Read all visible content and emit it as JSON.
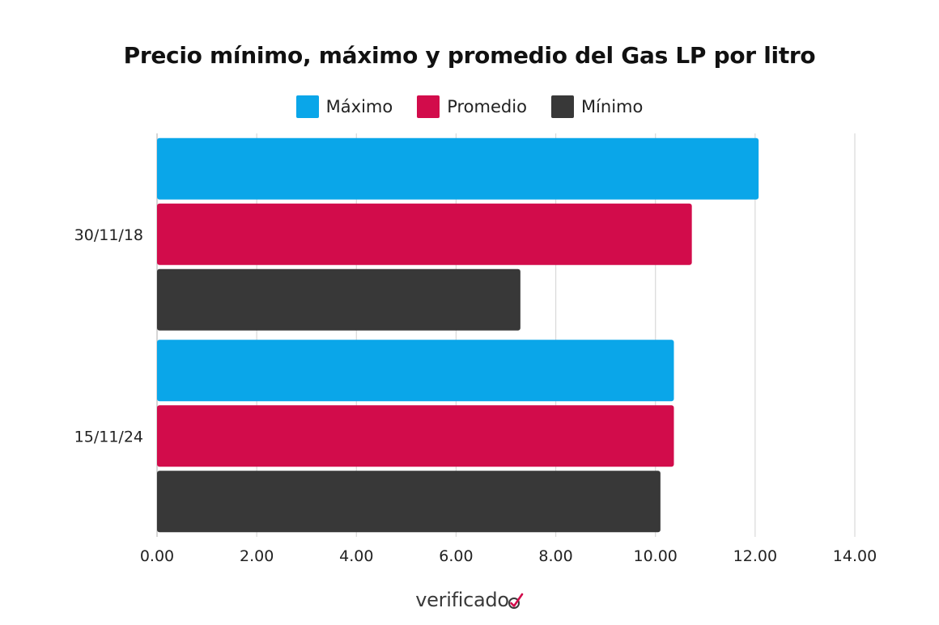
{
  "chart_data": {
    "type": "bar",
    "orientation": "horizontal",
    "title": "Precio mínimo, máximo y promedio del Gas LP por litro",
    "categories": [
      "30/11/18",
      "15/11/24"
    ],
    "series": [
      {
        "name": "Máximo",
        "color": "#0aa6e9",
        "values": [
          12.07,
          10.37
        ]
      },
      {
        "name": "Promedio",
        "color": "#d20c4b",
        "values": [
          10.73,
          10.37
        ]
      },
      {
        "name": "Mínimo",
        "color": "#383838",
        "values": [
          7.29,
          10.1
        ]
      }
    ],
    "xlim": [
      0,
      14
    ],
    "x_ticks": [
      "0.00",
      "2.00",
      "4.00",
      "6.00",
      "8.00",
      "10.00",
      "12.00",
      "14.00"
    ],
    "grid": true,
    "legend_position": "top"
  },
  "branding": {
    "logo_text": "verificado",
    "accent_color": "#d20c4b"
  }
}
